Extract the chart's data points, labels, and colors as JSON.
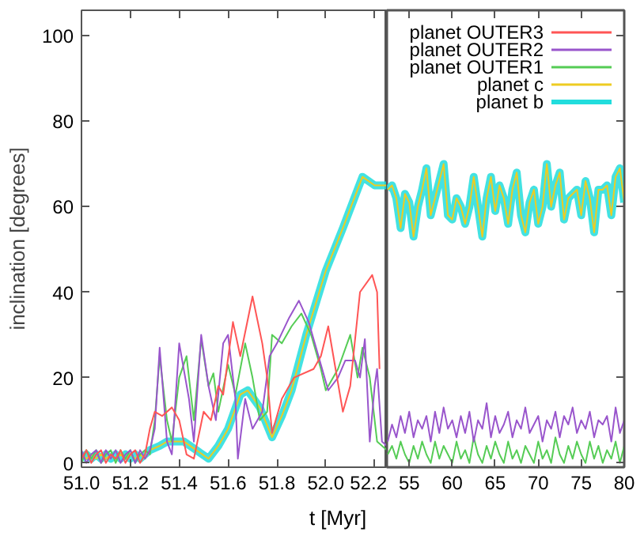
{
  "chart_data": [
    {
      "type": "line",
      "legend": "top right",
      "xlabel": "t [Myr]",
      "ylabel": "inclination [degrees]",
      "xlim": [
        51.0,
        52.25
      ],
      "ylim": [
        -1,
        106
      ],
      "xticks": [
        {
          "value": 51.0,
          "label": "51.0"
        },
        51.2,
        51.4,
        51.6,
        51.8,
        {
          "value": 52.0,
          "label": "52.0"
        },
        52.2
      ],
      "yticks": [
        0,
        20,
        40,
        60,
        80,
        100
      ],
      "series": [
        {
          "name": "planet b",
          "color": "#22dddd",
          "x": [
            51.0,
            51.02,
            51.04,
            51.06,
            51.08,
            51.1,
            51.12,
            51.14,
            51.16,
            51.18,
            51.2,
            51.22,
            51.24,
            51.26,
            51.28,
            51.32,
            51.35,
            51.42,
            51.47,
            51.52,
            51.56,
            51.6,
            51.65,
            51.68,
            51.73,
            51.78,
            51.82,
            51.86,
            51.92,
            52.0,
            52.07,
            52.15,
            52.2,
            52.25
          ],
          "values": [
            1,
            2,
            1,
            2,
            1,
            2,
            1,
            2,
            1,
            2,
            1,
            2,
            1,
            2,
            3,
            4,
            5,
            5,
            3,
            1,
            4,
            8,
            16,
            17,
            13,
            6,
            11,
            17,
            30,
            45,
            55,
            67,
            65,
            65
          ]
        },
        {
          "name": "planet c",
          "color": "#eecc22",
          "x": [
            51.0,
            51.02,
            51.04,
            51.06,
            51.08,
            51.1,
            51.12,
            51.14,
            51.16,
            51.18,
            51.2,
            51.22,
            51.24,
            51.26,
            51.28,
            51.32,
            51.35,
            51.42,
            51.47,
            51.52,
            51.56,
            51.6,
            51.65,
            51.68,
            51.73,
            51.78,
            51.82,
            51.86,
            51.92,
            52.0,
            52.07,
            52.15,
            52.2,
            52.25
          ],
          "values": [
            2,
            1,
            2,
            1,
            2,
            1,
            2,
            1,
            2,
            1,
            2,
            1,
            2,
            1,
            3,
            4,
            5,
            5,
            3,
            1,
            4,
            8,
            16,
            17,
            13,
            6,
            11,
            17,
            30,
            45,
            55,
            67,
            65,
            65
          ]
        },
        {
          "name": "planet OUTER1",
          "color": "#55cc55",
          "x": [
            51.0,
            51.02,
            51.04,
            51.06,
            51.08,
            51.1,
            51.12,
            51.14,
            51.16,
            51.18,
            51.2,
            51.22,
            51.24,
            51.26,
            51.28,
            51.3,
            51.32,
            51.35,
            51.37,
            51.4,
            51.43,
            51.46,
            51.49,
            51.52,
            51.54,
            51.56,
            51.6,
            51.63,
            51.67,
            51.7,
            51.73,
            51.76,
            51.78,
            51.82,
            51.86,
            51.9,
            51.94,
            51.98,
            52.0,
            52.05,
            52.1,
            52.13,
            52.15,
            52.18,
            52.21,
            52.25
          ],
          "values": [
            0,
            3,
            1,
            3,
            0,
            2,
            3,
            0,
            3,
            1,
            3,
            0,
            2,
            3,
            2,
            10,
            25,
            10,
            5,
            20,
            25,
            10,
            29,
            18,
            21,
            12,
            23,
            16,
            28,
            20,
            10,
            12,
            30,
            28,
            32,
            35,
            30,
            22,
            17,
            22,
            30,
            20,
            27,
            20,
            5,
            3
          ]
        },
        {
          "name": "planet OUTER2",
          "color": "#9955cc",
          "x": [
            51.0,
            51.02,
            51.04,
            51.06,
            51.08,
            51.1,
            51.12,
            51.14,
            51.16,
            51.18,
            51.2,
            51.22,
            51.24,
            51.26,
            51.28,
            51.3,
            51.32,
            51.35,
            51.37,
            51.4,
            51.44,
            51.46,
            51.49,
            51.52,
            51.55,
            51.58,
            51.6,
            51.63,
            51.64,
            51.67,
            51.7,
            51.74,
            51.77,
            51.8,
            51.85,
            51.89,
            51.93,
            51.97,
            52.01,
            52.05,
            52.08,
            52.12,
            52.14,
            52.16,
            52.18,
            52.2,
            52.21,
            52.23,
            52.25
          ],
          "values": [
            3,
            0,
            2,
            3,
            0,
            3,
            1,
            3,
            0,
            2,
            3,
            0,
            3,
            1,
            3,
            8,
            27,
            5,
            2,
            28,
            15,
            5,
            30,
            18,
            10,
            28,
            30,
            15,
            1,
            15,
            8,
            12,
            25,
            28,
            34,
            38,
            33,
            25,
            17,
            20,
            24,
            24,
            20,
            29,
            5,
            18,
            22,
            5,
            4
          ]
        },
        {
          "name": "planet OUTER3",
          "color": "#ff5555",
          "x": [
            51.0,
            51.02,
            51.04,
            51.06,
            51.08,
            51.1,
            51.12,
            51.14,
            51.16,
            51.18,
            51.2,
            51.22,
            51.24,
            51.26,
            51.28,
            51.3,
            51.33,
            51.37,
            51.4,
            51.43,
            51.46,
            51.5,
            51.53,
            51.56,
            51.58,
            51.62,
            51.65,
            51.7,
            51.74,
            51.76,
            51.78,
            51.82,
            51.87,
            51.95,
            51.98,
            52.01,
            52.04,
            52.07,
            52.1,
            52.14,
            52.19,
            52.21,
            52.22
          ],
          "values": [
            1,
            3,
            0,
            2,
            3,
            0,
            2,
            1,
            3,
            0,
            2,
            3,
            0,
            2,
            8,
            12,
            11,
            13,
            10,
            2,
            1,
            12,
            10,
            18,
            16,
            33,
            25,
            39,
            28,
            20,
            7,
            15,
            20,
            22,
            25,
            32,
            22,
            12,
            18,
            40,
            44,
            40,
            22
          ]
        }
      ]
    },
    {
      "type": "line",
      "xlim": [
        52.4,
        80
      ],
      "ylim": [
        -1,
        106
      ],
      "xticks": [
        55,
        60,
        65,
        70,
        75,
        80
      ],
      "yticks": [
        0,
        20,
        40,
        60,
        80,
        100
      ],
      "tick_labels": "x",
      "x": [
        52.5,
        53,
        53.5,
        54,
        54.5,
        55,
        55.5,
        56,
        56.5,
        57,
        57.5,
        58,
        58.5,
        59,
        59.5,
        60,
        60.5,
        61,
        61.5,
        62,
        62.5,
        63,
        63.5,
        64,
        64.5,
        65,
        65.5,
        66,
        66.5,
        67,
        67.5,
        68,
        68.5,
        69,
        69.5,
        70,
        70.5,
        71,
        71.5,
        72,
        72.5,
        73,
        73.5,
        74,
        74.5,
        75,
        75.5,
        76,
        76.5,
        77,
        77.5,
        78,
        78.5,
        79,
        79.5,
        80
      ],
      "series": [
        {
          "color": "#22dddd",
          "values": [
            64,
            65,
            62,
            55,
            63,
            61,
            53,
            60,
            64,
            69,
            58,
            62,
            66,
            70,
            58,
            57,
            62,
            60,
            56,
            60,
            67,
            60,
            53,
            62,
            67,
            59,
            65,
            62,
            56,
            64,
            68,
            58,
            54,
            61,
            64,
            56,
            60,
            70,
            60,
            65,
            68,
            57,
            62,
            63,
            64,
            58,
            66,
            62,
            54,
            64,
            64,
            65,
            58,
            67,
            69,
            61
          ]
        },
        {
          "color": "#eecc22",
          "values": [
            64,
            65,
            62,
            55,
            63,
            61,
            53,
            60,
            64,
            69,
            58,
            62,
            66,
            70,
            58,
            57,
            62,
            60,
            56,
            60,
            67,
            60,
            53,
            62,
            67,
            59,
            65,
            62,
            56,
            64,
            68,
            58,
            54,
            61,
            64,
            56,
            60,
            70,
            60,
            65,
            68,
            57,
            62,
            63,
            64,
            58,
            66,
            62,
            54,
            64,
            64,
            65,
            58,
            67,
            69,
            61
          ]
        },
        {
          "color": "#55cc55",
          "values": [
            2,
            4,
            1,
            5,
            2,
            0,
            4,
            1,
            5,
            2,
            0,
            5,
            1,
            4,
            2,
            0,
            5,
            1,
            3,
            0,
            6,
            2,
            0,
            4,
            1,
            5,
            2,
            0,
            5,
            1,
            3,
            0,
            4,
            2,
            0,
            5,
            1,
            3,
            0,
            6,
            2,
            0,
            4,
            1,
            5,
            2,
            0,
            5,
            1,
            4,
            0,
            3,
            1,
            5,
            0,
            4
          ]
        },
        {
          "color": "#9955cc",
          "values": [
            5,
            9,
            6,
            11,
            7,
            12,
            6,
            10,
            8,
            11,
            5,
            12,
            7,
            13,
            8,
            10,
            6,
            11,
            7,
            12,
            5,
            10,
            8,
            14,
            6,
            11,
            7,
            9,
            12,
            6,
            10,
            8,
            13,
            7,
            9,
            11,
            5,
            10,
            8,
            12,
            6,
            11,
            9,
            13,
            7,
            10,
            8,
            12,
            6,
            10,
            9,
            11,
            5,
            13,
            7,
            10
          ]
        }
      ]
    }
  ]
}
